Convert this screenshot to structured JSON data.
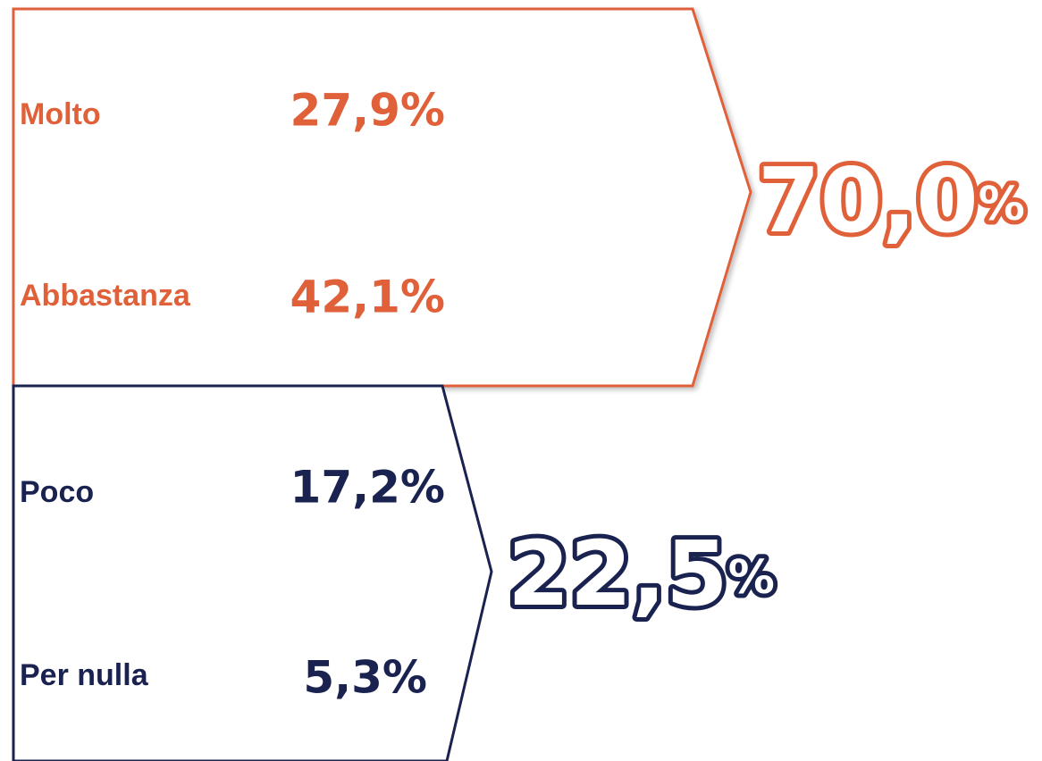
{
  "groups": [
    {
      "items": [
        {
          "label": "Molto",
          "value": "27,9%"
        },
        {
          "label": "Abbastanza",
          "value": "42,1%"
        }
      ],
      "total": {
        "number": "70,0",
        "unit": "%"
      }
    },
    {
      "items": [
        {
          "label": "Poco",
          "value": "17,2%"
        },
        {
          "label": "Per nulla",
          "value": "5,3%"
        }
      ],
      "total": {
        "number": "22,5",
        "unit": "%"
      }
    }
  ]
}
